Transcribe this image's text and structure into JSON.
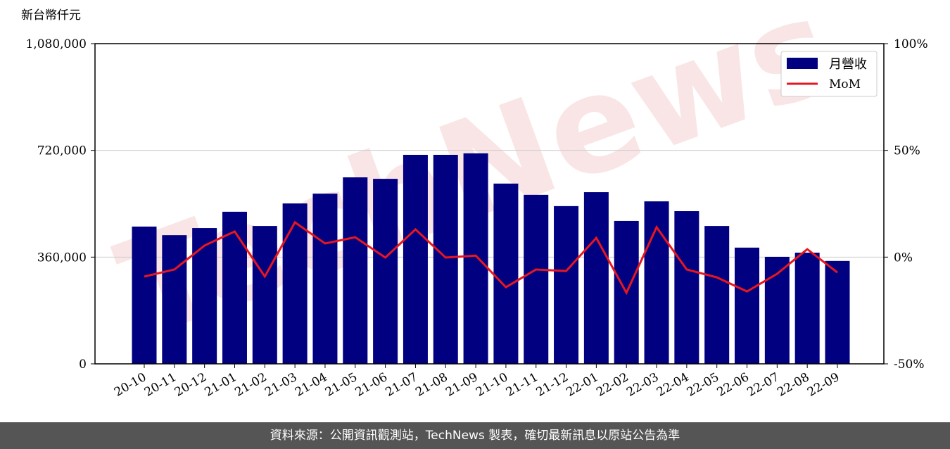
{
  "chart_data": {
    "type": "bar-line",
    "y_label": "新台幣仟元",
    "watermark": "TechNews",
    "categories": [
      "20-10",
      "20-11",
      "20-12",
      "21-01",
      "21-02",
      "21-03",
      "21-04",
      "21-05",
      "21-06",
      "21-07",
      "21-08",
      "21-09",
      "21-10",
      "21-11",
      "21-12",
      "22-01",
      "22-02",
      "22-03",
      "22-04",
      "22-05",
      "22-06",
      "22-07",
      "22-08",
      "22-09"
    ],
    "series": [
      {
        "name": "月營收",
        "color": "#000080",
        "values": [
          463000,
          434000,
          458000,
          513000,
          465000,
          541000,
          574000,
          629000,
          624000,
          705000,
          705000,
          710000,
          608000,
          570000,
          532000,
          579000,
          482000,
          548000,
          515000,
          465000,
          392000,
          361000,
          375000,
          347000
        ]
      },
      {
        "name": "MoM",
        "color": "#e8161e",
        "axis": "y2",
        "values": [
          -9.1,
          -5.8,
          5.4,
          12.0,
          -9.1,
          16.3,
          6.4,
          9.3,
          -0.2,
          13.0,
          -0.2,
          0.7,
          -14.1,
          -5.8,
          -6.5,
          9.0,
          -16.7,
          14.0,
          -5.8,
          -9.5,
          -16.1,
          -7.8,
          3.7,
          -7.2
        ]
      }
    ],
    "ylim": [
      0,
      1080000
    ],
    "yticks": [
      0,
      {
        "value": 360000,
        "label": "360,000"
      },
      {
        "value": 720000,
        "label": "720,000"
      },
      {
        "value": 1080000,
        "label": "1,080,000"
      }
    ],
    "y2lim": [
      -50,
      100
    ],
    "y2ticks": [
      {
        "value": -50,
        "label": "-50%"
      },
      {
        "value": 0,
        "label": "0%"
      },
      {
        "value": 50,
        "label": "50%"
      },
      {
        "value": 100,
        "label": "100%"
      }
    ],
    "grid": true,
    "legend": "upper right",
    "footer": "資料來源：公開資訊觀測站，TechNews 製表，確切最新訊息以原站公告為準"
  }
}
